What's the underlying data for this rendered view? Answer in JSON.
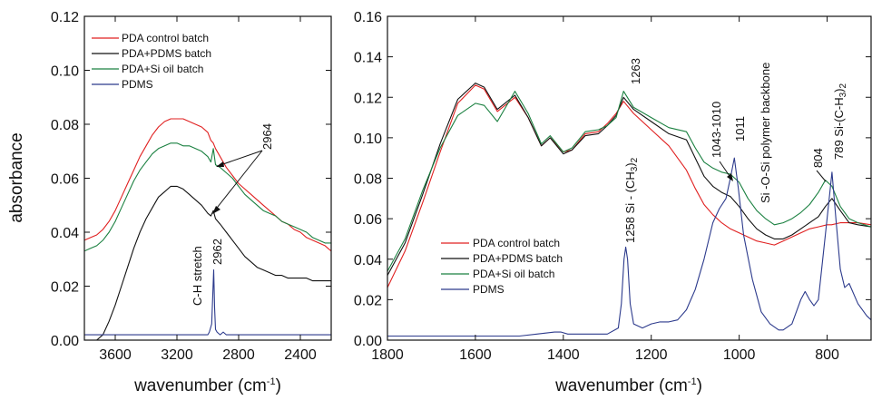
{
  "chart_data": [
    {
      "type": "line",
      "panel": "left",
      "xlabel": "wavenumber (cm",
      "xlabel_sup": "-1",
      "xlabel_close": ")",
      "ylabel": "absorbance",
      "xlim": [
        3800,
        2200
      ],
      "ylim": [
        0,
        0.12
      ],
      "xticks": [
        3600,
        3200,
        2800,
        2400
      ],
      "yticks": [
        0.0,
        0.02,
        0.04,
        0.06,
        0.08,
        0.1,
        0.12
      ],
      "ytick_labels": [
        "0.00",
        "0.02",
        "0.04",
        "0.06",
        "0.08",
        "0.10",
        "0.12"
      ],
      "legend_position": "top-left",
      "series": [
        {
          "name": "PDA control batch",
          "color": "#e02020",
          "x": [
            3800,
            3760,
            3720,
            3680,
            3640,
            3600,
            3560,
            3520,
            3480,
            3440,
            3400,
            3360,
            3320,
            3280,
            3240,
            3200,
            3160,
            3120,
            3080,
            3040,
            3000,
            2980,
            2964,
            2950,
            2920,
            2880,
            2840,
            2800,
            2760,
            2720,
            2680,
            2640,
            2600,
            2560,
            2520,
            2480,
            2440,
            2400,
            2360,
            2320,
            2280,
            2240,
            2200
          ],
          "y": [
            0.037,
            0.038,
            0.039,
            0.041,
            0.044,
            0.048,
            0.053,
            0.058,
            0.063,
            0.068,
            0.072,
            0.076,
            0.079,
            0.081,
            0.082,
            0.082,
            0.082,
            0.081,
            0.08,
            0.079,
            0.077,
            0.074,
            0.073,
            0.071,
            0.068,
            0.064,
            0.061,
            0.058,
            0.056,
            0.054,
            0.052,
            0.05,
            0.048,
            0.046,
            0.044,
            0.043,
            0.041,
            0.04,
            0.038,
            0.037,
            0.036,
            0.035,
            0.033
          ]
        },
        {
          "name": "PDA+PDMS batch",
          "color": "#111111",
          "x": [
            3800,
            3760,
            3720,
            3680,
            3640,
            3600,
            3560,
            3520,
            3480,
            3440,
            3400,
            3360,
            3320,
            3280,
            3240,
            3200,
            3160,
            3120,
            3080,
            3040,
            3000,
            2980,
            2964,
            2950,
            2920,
            2880,
            2840,
            2800,
            2760,
            2720,
            2680,
            2640,
            2600,
            2560,
            2520,
            2480,
            2440,
            2400,
            2360,
            2320,
            2280,
            2240,
            2200
          ],
          "y": [
            0.0,
            0.0,
            0.0,
            0.002,
            0.007,
            0.013,
            0.02,
            0.027,
            0.034,
            0.04,
            0.045,
            0.049,
            0.053,
            0.055,
            0.057,
            0.057,
            0.056,
            0.054,
            0.052,
            0.05,
            0.047,
            0.046,
            0.048,
            0.045,
            0.043,
            0.04,
            0.037,
            0.034,
            0.031,
            0.029,
            0.027,
            0.026,
            0.025,
            0.024,
            0.024,
            0.023,
            0.023,
            0.023,
            0.023,
            0.022,
            0.022,
            0.022,
            0.022
          ]
        },
        {
          "name": "PDA+Si oil batch",
          "color": "#1a8040",
          "x": [
            3800,
            3760,
            3720,
            3680,
            3640,
            3600,
            3560,
            3520,
            3480,
            3440,
            3400,
            3360,
            3320,
            3280,
            3240,
            3200,
            3160,
            3120,
            3080,
            3040,
            3000,
            2980,
            2964,
            2950,
            2920,
            2880,
            2840,
            2800,
            2760,
            2720,
            2680,
            2640,
            2600,
            2560,
            2520,
            2480,
            2440,
            2400,
            2360,
            2320,
            2280,
            2240,
            2200
          ],
          "y": [
            0.033,
            0.034,
            0.035,
            0.037,
            0.04,
            0.044,
            0.049,
            0.054,
            0.059,
            0.063,
            0.066,
            0.069,
            0.071,
            0.072,
            0.073,
            0.073,
            0.072,
            0.072,
            0.071,
            0.07,
            0.068,
            0.066,
            0.071,
            0.065,
            0.064,
            0.062,
            0.06,
            0.057,
            0.054,
            0.052,
            0.05,
            0.048,
            0.047,
            0.046,
            0.044,
            0.043,
            0.042,
            0.041,
            0.04,
            0.038,
            0.037,
            0.036,
            0.036
          ]
        },
        {
          "name": "PDMS",
          "color": "#2c3a8c",
          "x": [
            3800,
            3600,
            3400,
            3200,
            3100,
            3040,
            3000,
            2990,
            2975,
            2968,
            2962,
            2956,
            2950,
            2940,
            2920,
            2900,
            2880,
            2860,
            2800,
            2600,
            2400,
            2200
          ],
          "y": [
            0.002,
            0.002,
            0.002,
            0.002,
            0.002,
            0.002,
            0.002,
            0.003,
            0.006,
            0.016,
            0.026,
            0.012,
            0.004,
            0.003,
            0.002,
            0.003,
            0.002,
            0.002,
            0.002,
            0.002,
            0.002,
            0.002
          ]
        }
      ],
      "annotations": [
        {
          "text": "2964"
        },
        {
          "text": "2962"
        },
        {
          "text": "C-H stretch"
        }
      ]
    },
    {
      "type": "line",
      "panel": "right",
      "xlabel": "wavenumber (cm",
      "xlabel_sup": "-1",
      "xlabel_close": ")",
      "xlim": [
        1800,
        700
      ],
      "ylim": [
        0,
        0.16
      ],
      "xticks": [
        1800,
        1600,
        1400,
        1200,
        1000,
        800
      ],
      "yticks": [
        0.0,
        0.02,
        0.04,
        0.06,
        0.08,
        0.1,
        0.12,
        0.14,
        0.16
      ],
      "ytick_labels": [
        "0.00",
        "0.02",
        "0.04",
        "0.06",
        "0.08",
        "0.10",
        "0.12",
        "0.14",
        "0.16"
      ],
      "legend_position": "lower-left",
      "series": [
        {
          "name": "PDA control batch",
          "color": "#e02020",
          "x": [
            1800,
            1760,
            1720,
            1680,
            1640,
            1600,
            1580,
            1550,
            1510,
            1480,
            1450,
            1430,
            1400,
            1380,
            1350,
            1320,
            1300,
            1280,
            1263,
            1240,
            1200,
            1160,
            1120,
            1100,
            1080,
            1060,
            1040,
            1020,
            1000,
            980,
            960,
            940,
            920,
            900,
            880,
            860,
            840,
            820,
            800,
            790,
            770,
            750,
            730,
            700
          ],
          "y": [
            0.026,
            0.044,
            0.068,
            0.093,
            0.117,
            0.126,
            0.124,
            0.113,
            0.12,
            0.11,
            0.096,
            0.1,
            0.093,
            0.094,
            0.102,
            0.103,
            0.107,
            0.112,
            0.118,
            0.112,
            0.104,
            0.096,
            0.084,
            0.075,
            0.067,
            0.062,
            0.058,
            0.055,
            0.053,
            0.051,
            0.049,
            0.048,
            0.047,
            0.049,
            0.051,
            0.053,
            0.055,
            0.056,
            0.057,
            0.057,
            0.058,
            0.058,
            0.058,
            0.057
          ]
        },
        {
          "name": "PDA+PDMS batch",
          "color": "#111111",
          "x": [
            1800,
            1760,
            1720,
            1680,
            1640,
            1600,
            1580,
            1550,
            1510,
            1480,
            1450,
            1430,
            1400,
            1380,
            1350,
            1320,
            1300,
            1280,
            1263,
            1240,
            1200,
            1160,
            1120,
            1100,
            1080,
            1060,
            1040,
            1020,
            1000,
            980,
            960,
            940,
            920,
            900,
            880,
            860,
            840,
            820,
            804,
            789,
            770,
            750,
            730,
            700
          ],
          "y": [
            0.032,
            0.048,
            0.072,
            0.097,
            0.119,
            0.127,
            0.125,
            0.114,
            0.121,
            0.11,
            0.096,
            0.1,
            0.092,
            0.094,
            0.101,
            0.102,
            0.106,
            0.111,
            0.12,
            0.114,
            0.108,
            0.102,
            0.099,
            0.09,
            0.081,
            0.076,
            0.073,
            0.071,
            0.066,
            0.06,
            0.055,
            0.052,
            0.05,
            0.05,
            0.052,
            0.055,
            0.058,
            0.061,
            0.066,
            0.07,
            0.064,
            0.058,
            0.057,
            0.056
          ]
        },
        {
          "name": "PDA+Si oil batch",
          "color": "#1a8040",
          "x": [
            1800,
            1760,
            1720,
            1680,
            1640,
            1600,
            1580,
            1550,
            1510,
            1480,
            1450,
            1430,
            1400,
            1380,
            1350,
            1320,
            1300,
            1280,
            1263,
            1240,
            1200,
            1160,
            1120,
            1100,
            1080,
            1060,
            1040,
            1020,
            1000,
            980,
            960,
            940,
            920,
            900,
            880,
            860,
            840,
            820,
            804,
            789,
            770,
            750,
            730,
            700
          ],
          "y": [
            0.034,
            0.05,
            0.074,
            0.095,
            0.111,
            0.117,
            0.116,
            0.108,
            0.123,
            0.112,
            0.097,
            0.101,
            0.093,
            0.095,
            0.103,
            0.104,
            0.106,
            0.11,
            0.123,
            0.115,
            0.11,
            0.105,
            0.103,
            0.095,
            0.088,
            0.085,
            0.083,
            0.082,
            0.078,
            0.07,
            0.064,
            0.06,
            0.057,
            0.058,
            0.06,
            0.063,
            0.067,
            0.073,
            0.079,
            0.076,
            0.066,
            0.06,
            0.058,
            0.056
          ]
        },
        {
          "name": "PDMS",
          "color": "#2c3a8c",
          "x": [
            1800,
            1700,
            1600,
            1500,
            1460,
            1420,
            1405,
            1390,
            1350,
            1300,
            1275,
            1268,
            1262,
            1258,
            1254,
            1248,
            1240,
            1220,
            1200,
            1180,
            1160,
            1140,
            1120,
            1100,
            1080,
            1060,
            1045,
            1030,
            1020,
            1011,
            1002,
            990,
            970,
            950,
            930,
            910,
            900,
            880,
            870,
            860,
            850,
            840,
            830,
            820,
            810,
            800,
            789,
            780,
            770,
            760,
            750,
            730,
            710,
            700
          ],
          "y": [
            0.002,
            0.002,
            0.002,
            0.002,
            0.003,
            0.004,
            0.004,
            0.003,
            0.003,
            0.003,
            0.006,
            0.018,
            0.04,
            0.046,
            0.04,
            0.018,
            0.008,
            0.006,
            0.008,
            0.009,
            0.009,
            0.01,
            0.015,
            0.025,
            0.04,
            0.058,
            0.065,
            0.07,
            0.08,
            0.09,
            0.075,
            0.052,
            0.03,
            0.014,
            0.008,
            0.005,
            0.005,
            0.008,
            0.014,
            0.02,
            0.024,
            0.02,
            0.017,
            0.02,
            0.04,
            0.06,
            0.083,
            0.06,
            0.035,
            0.026,
            0.028,
            0.018,
            0.012,
            0.01
          ]
        }
      ],
      "annotations": [
        {
          "text": "1263"
        },
        {
          "text": "1258  Si - (CH",
          "sub": "3",
          "close": ")",
          "sub2": "2"
        },
        {
          "text": "1043-1010"
        },
        {
          "text": "1011"
        },
        {
          "text": "Si -O-Si polymer backbone"
        },
        {
          "text": "804"
        },
        {
          "text": "789  Si-(C-H",
          "sub": "3",
          "close": ")",
          "sub2": "2"
        }
      ]
    }
  ]
}
